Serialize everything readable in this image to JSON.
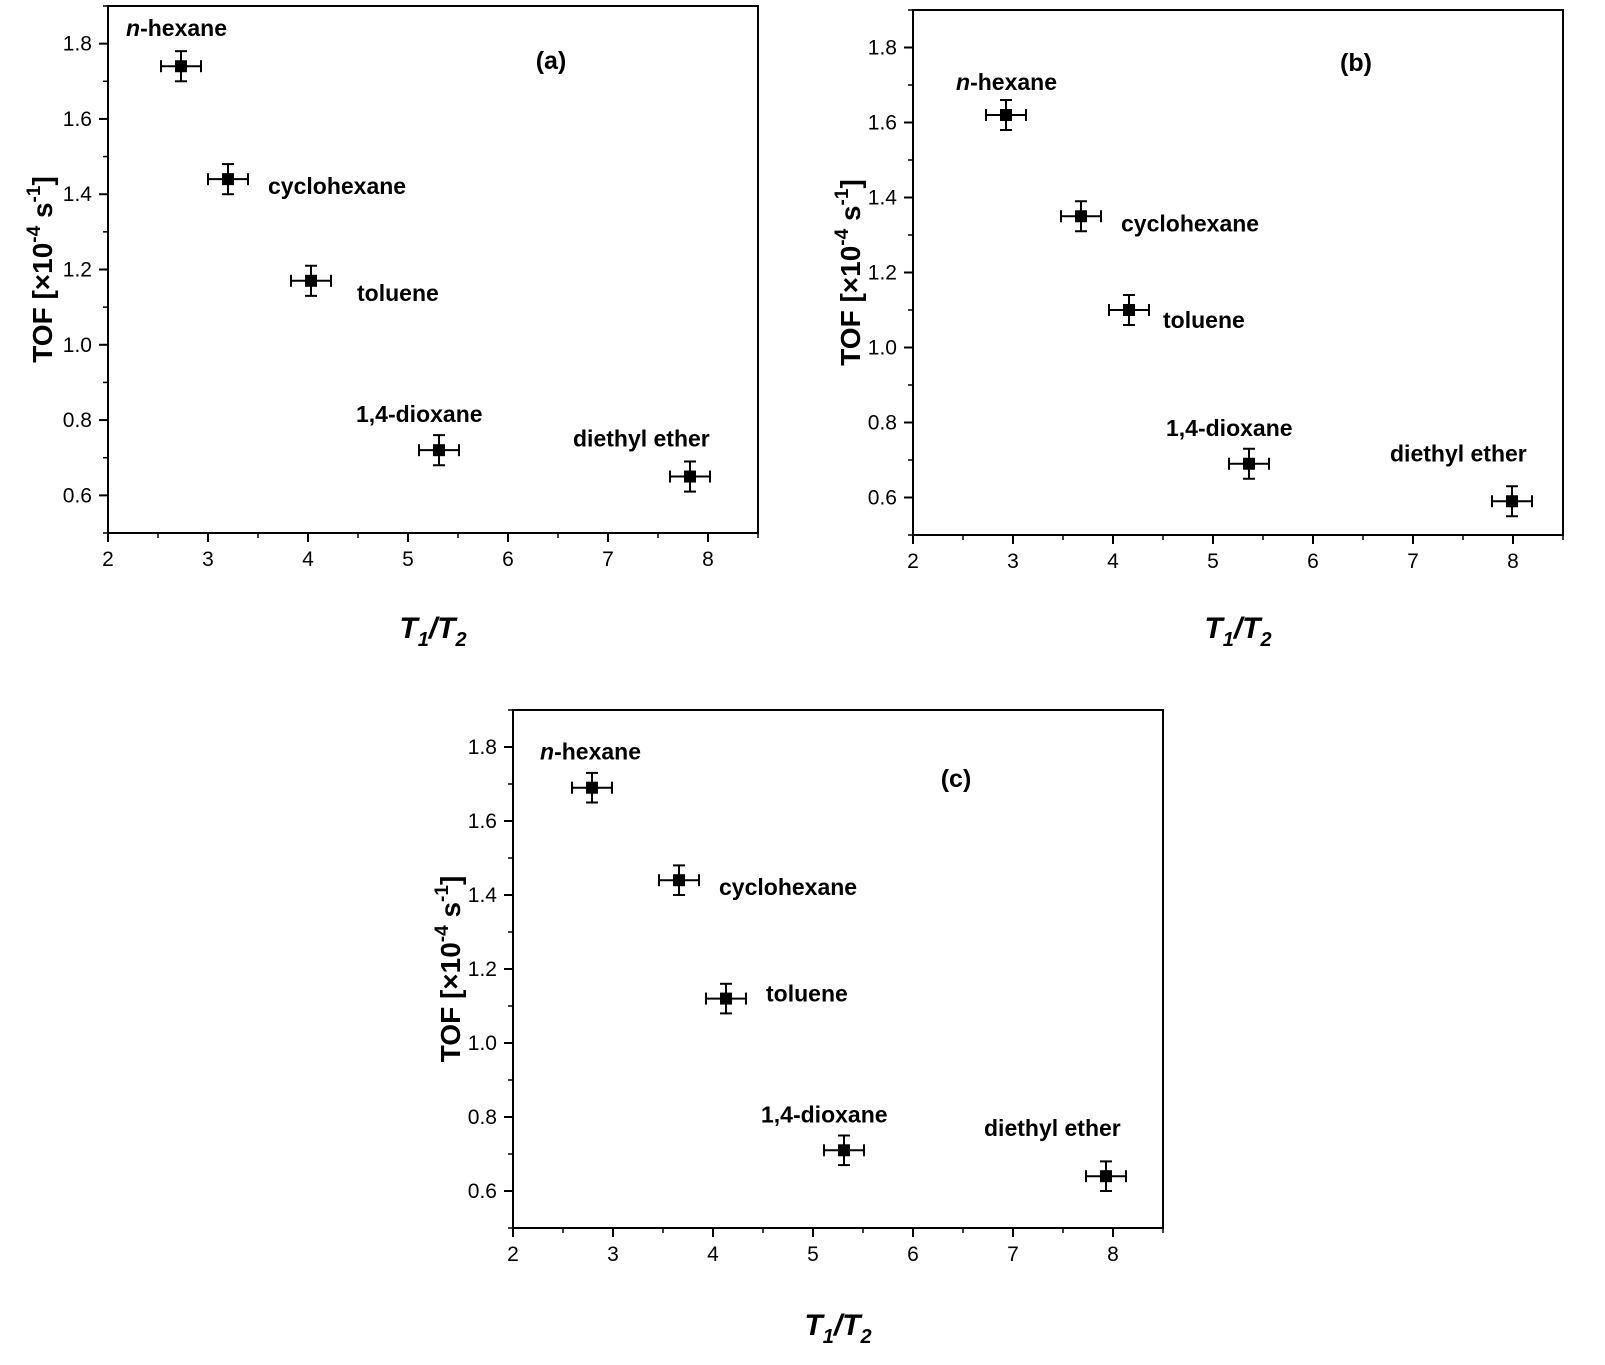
{
  "chart_data": [
    {
      "type": "scatter",
      "panel_label": "(a)",
      "xlabel": {
        "main": "T",
        "sub1": "1",
        "slash": "/",
        "main2": "T",
        "sub2": "2"
      },
      "ylabel": {
        "prefix": "TOF [×10",
        "exp1": "-4",
        "mid": " s",
        "exp2": "-1",
        "suffix": "]"
      },
      "xlim": [
        2,
        8.5
      ],
      "ylim": [
        0.5,
        1.9
      ],
      "xticks": [
        "2",
        "3",
        "4",
        "5",
        "6",
        "7",
        "8"
      ],
      "yticks": [
        "0.6",
        "0.8",
        "1.0",
        "1.2",
        "1.4",
        "1.6",
        "1.8"
      ],
      "points": [
        {
          "label": "n-hexane",
          "label_italic": "n",
          "label_rest": "-hexane",
          "x": 2.73,
          "y": 1.74,
          "xerr": 0.2,
          "yerr": 0.04,
          "label_pos": "above-left"
        },
        {
          "label": "cyclohexane",
          "x": 3.2,
          "y": 1.44,
          "xerr": 0.2,
          "yerr": 0.04,
          "label_pos": "right"
        },
        {
          "label": "toluene",
          "x": 4.03,
          "y": 1.17,
          "xerr": 0.2,
          "yerr": 0.04,
          "label_pos": "right-far"
        },
        {
          "label": "1,4-dioxane",
          "x": 5.31,
          "y": 0.72,
          "xerr": 0.2,
          "yerr": 0.04,
          "label_pos": "above"
        },
        {
          "label": "diethyl ether",
          "x": 7.82,
          "y": 0.65,
          "xerr": 0.2,
          "yerr": 0.04,
          "label_pos": "above-left"
        }
      ]
    },
    {
      "type": "scatter",
      "panel_label": "(b)",
      "xlabel": {
        "main": "T",
        "sub1": "1",
        "slash": "/",
        "main2": "T",
        "sub2": "2"
      },
      "ylabel": {
        "prefix": "TOF [×10",
        "exp1": "-4",
        "mid": " s",
        "exp2": "-1",
        "suffix": "]"
      },
      "xlim": [
        2,
        8.5
      ],
      "ylim": [
        0.5,
        1.9
      ],
      "xticks": [
        "2",
        "3",
        "4",
        "5",
        "6",
        "7",
        "8"
      ],
      "yticks": [
        "0.6",
        "0.8",
        "1.0",
        "1.2",
        "1.4",
        "1.6",
        "1.8"
      ],
      "points": [
        {
          "label": "n-hexane",
          "label_italic": "n",
          "label_rest": "-hexane",
          "x": 2.93,
          "y": 1.62,
          "xerr": 0.2,
          "yerr": 0.04,
          "label_pos": "above-left"
        },
        {
          "label": "cyclohexane",
          "x": 3.68,
          "y": 1.35,
          "xerr": 0.2,
          "yerr": 0.04,
          "label_pos": "right"
        },
        {
          "label": "toluene",
          "x": 4.16,
          "y": 1.1,
          "xerr": 0.2,
          "yerr": 0.04,
          "label_pos": "right-low"
        },
        {
          "label": "1,4-dioxane",
          "x": 5.36,
          "y": 0.69,
          "xerr": 0.2,
          "yerr": 0.04,
          "label_pos": "above"
        },
        {
          "label": "diethyl ether",
          "x": 7.99,
          "y": 0.59,
          "xerr": 0.2,
          "yerr": 0.04,
          "label_pos": "above-left"
        }
      ]
    },
    {
      "type": "scatter",
      "panel_label": "(c)",
      "xlabel": {
        "main": "T",
        "sub1": "1",
        "slash": "/",
        "main2": "T",
        "sub2": "2"
      },
      "ylabel": {
        "prefix": "TOF [×10",
        "exp1": "-4",
        "mid": " s",
        "exp2": "-1",
        "suffix": "]"
      },
      "xlim": [
        2,
        8.5
      ],
      "ylim": [
        0.5,
        1.9
      ],
      "xticks": [
        "2",
        "3",
        "4",
        "5",
        "6",
        "7",
        "8"
      ],
      "yticks": [
        "0.6",
        "0.8",
        "1.0",
        "1.2",
        "1.4",
        "1.6",
        "1.8"
      ],
      "points": [
        {
          "label": "n-hexane",
          "label_italic": "n",
          "label_rest": "-hexane",
          "x": 2.79,
          "y": 1.69,
          "xerr": 0.2,
          "yerr": 0.04,
          "label_pos": "above-left"
        },
        {
          "label": "cyclohexane",
          "x": 3.66,
          "y": 1.44,
          "xerr": 0.2,
          "yerr": 0.04,
          "label_pos": "right"
        },
        {
          "label": "toluene",
          "x": 4.13,
          "y": 1.12,
          "xerr": 0.2,
          "yerr": 0.04,
          "label_pos": "right-high"
        },
        {
          "label": "1,4-dioxane",
          "x": 5.31,
          "y": 0.71,
          "xerr": 0.2,
          "yerr": 0.04,
          "label_pos": "above"
        },
        {
          "label": "diethyl ether",
          "x": 7.93,
          "y": 0.64,
          "xerr": 0.2,
          "yerr": 0.04,
          "label_pos": "above-left"
        }
      ]
    }
  ]
}
